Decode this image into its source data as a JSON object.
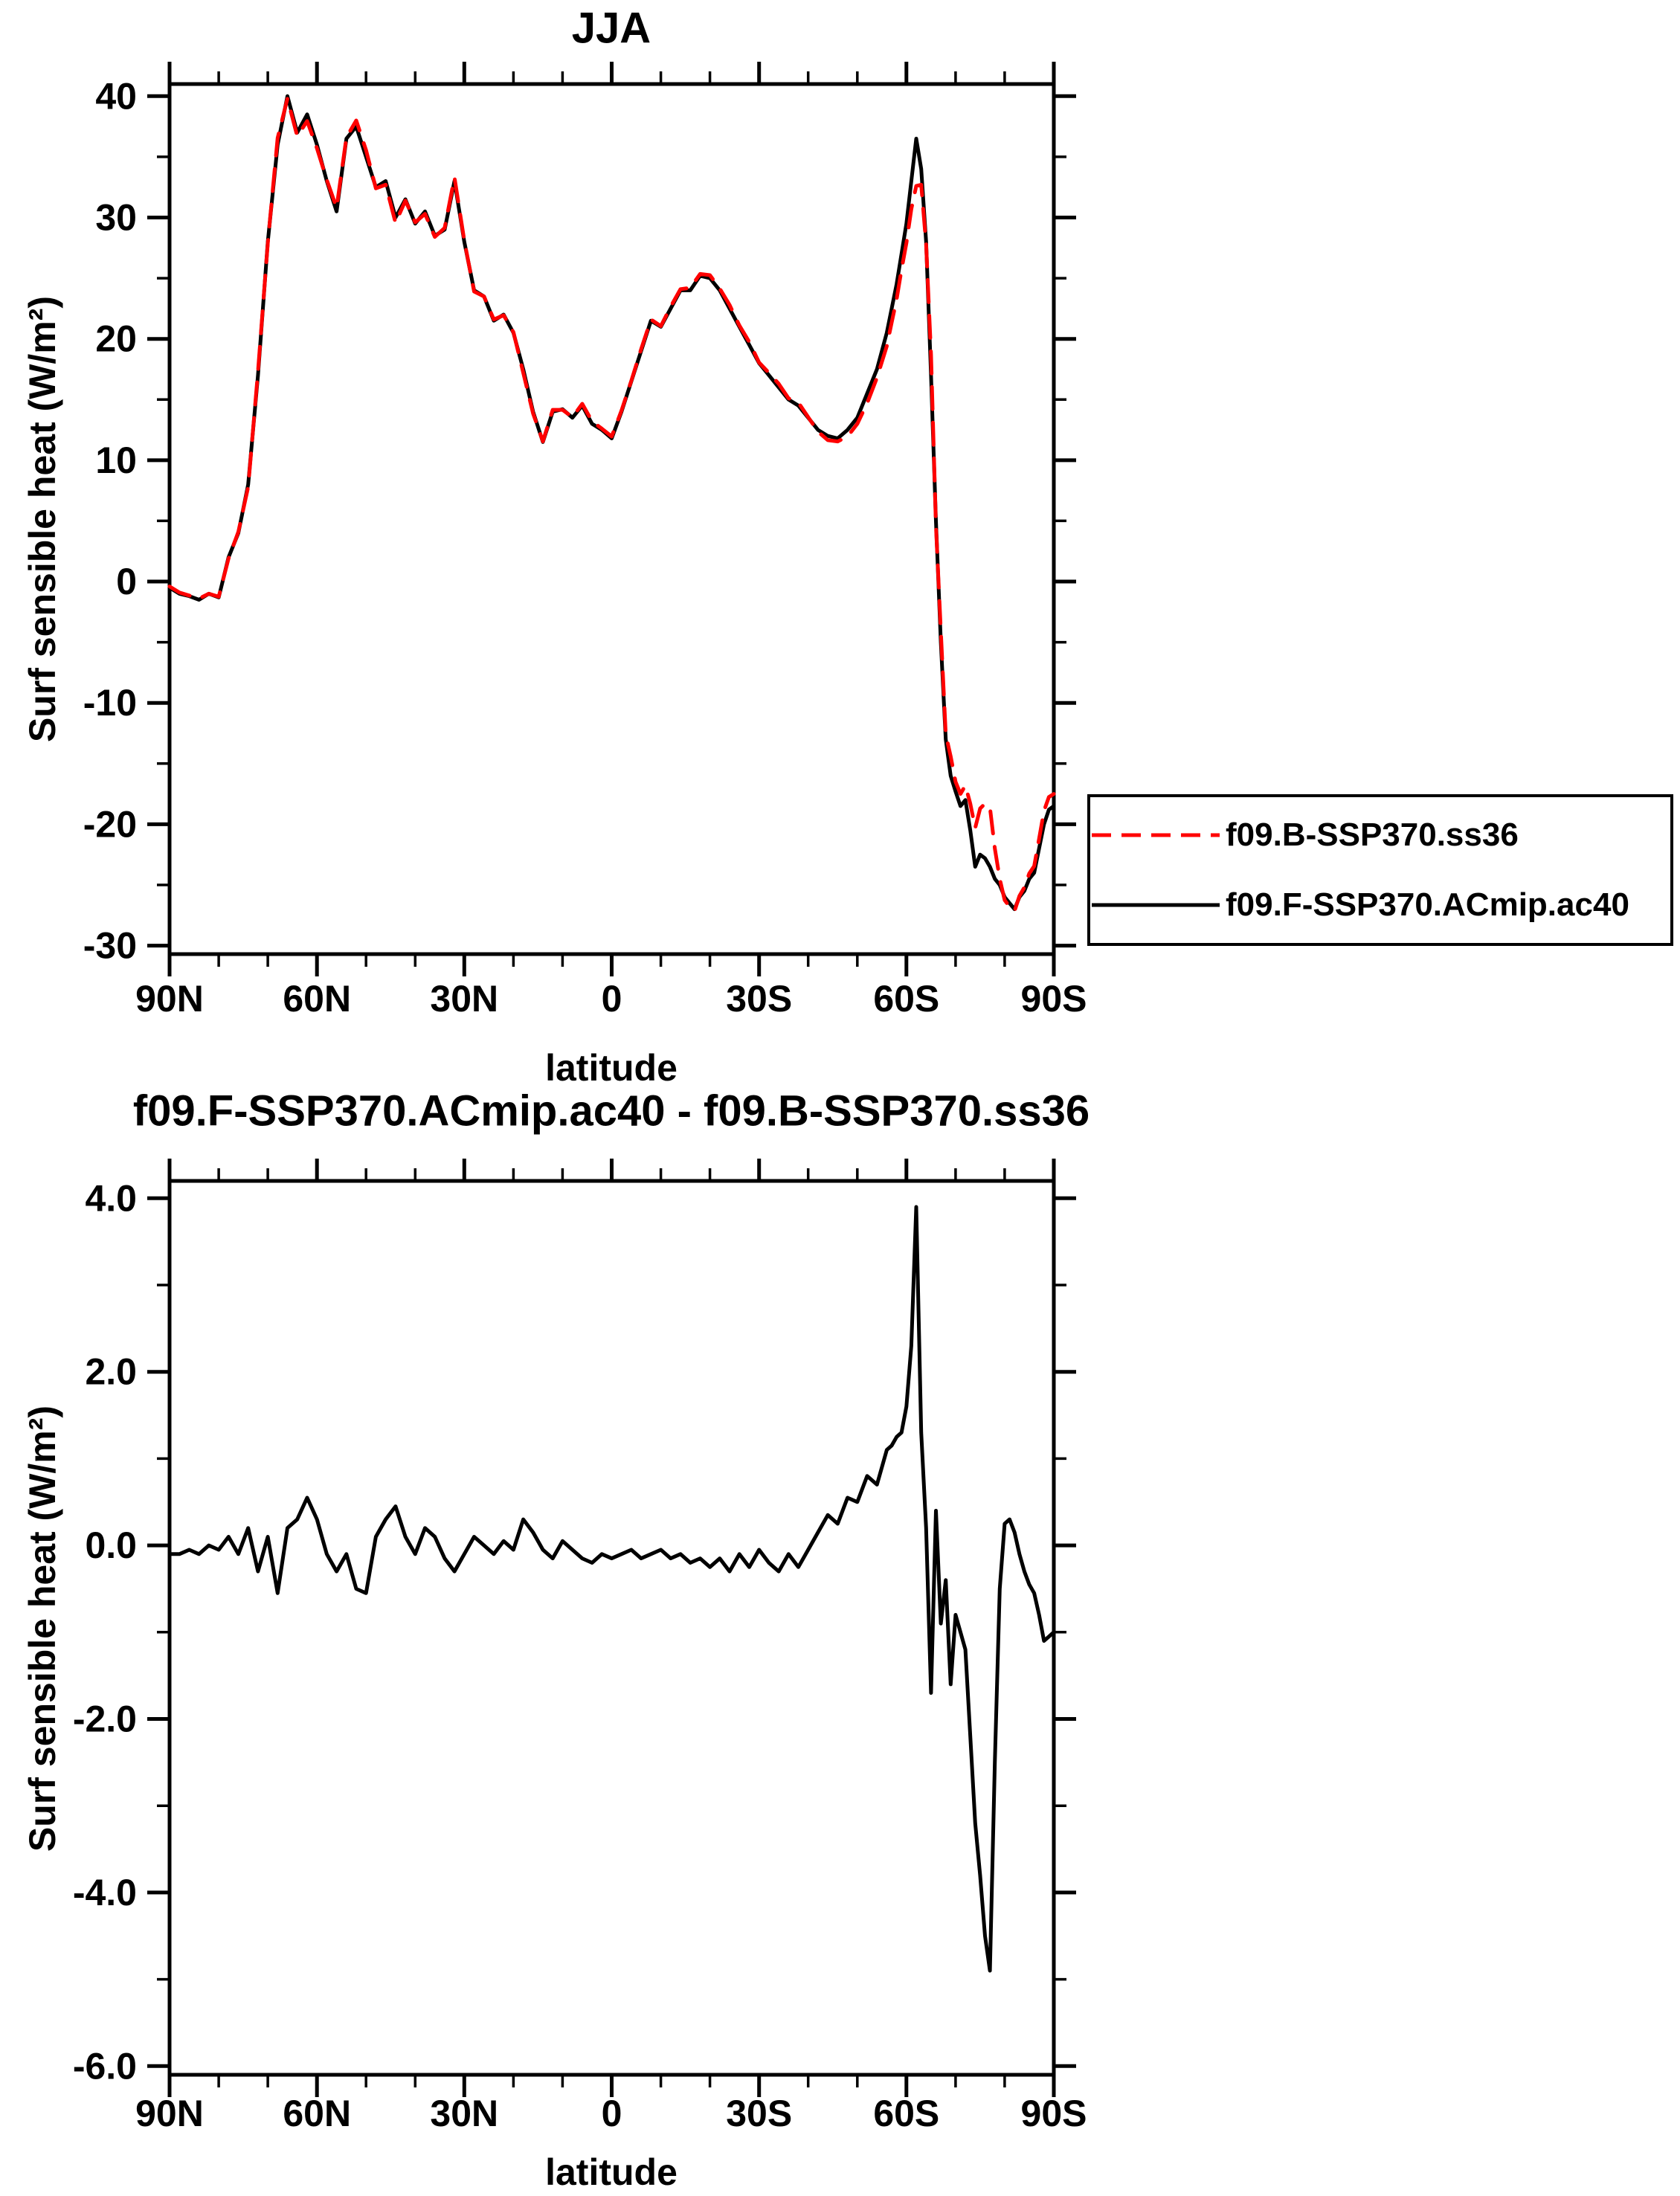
{
  "figure": {
    "background": "#ffffff",
    "axis_color": "#000000"
  },
  "chart_data": [
    {
      "type": "line",
      "title": "JJA",
      "xlabel": "latitude",
      "ylabel": "Surf sensible heat (W/m²)",
      "xlim": [
        90,
        -90
      ],
      "ylim": [
        -30,
        40
      ],
      "grid": false,
      "legend_position": "outside-right-bottom",
      "x_tick_labels": [
        {
          "lat": 90,
          "label": "90N"
        },
        {
          "lat": 60,
          "label": "60N"
        },
        {
          "lat": 30,
          "label": "30N"
        },
        {
          "lat": 0,
          "label": "0"
        },
        {
          "lat": -30,
          "label": "30S"
        },
        {
          "lat": -60,
          "label": "60S"
        },
        {
          "lat": -90,
          "label": "90S"
        }
      ],
      "y_ticks": [
        {
          "v": 40,
          "label": "40"
        },
        {
          "v": 30,
          "label": "30"
        },
        {
          "v": 20,
          "label": "20"
        },
        {
          "v": 10,
          "label": "10"
        },
        {
          "v": 0,
          "label": "0"
        },
        {
          "v": -10,
          "label": "-10"
        },
        {
          "v": -20,
          "label": "-20"
        },
        {
          "v": -30,
          "label": "-30"
        }
      ],
      "x": [
        90,
        88,
        86,
        84,
        82,
        80,
        78,
        76,
        74,
        72,
        70,
        68,
        66,
        64,
        62,
        60,
        58,
        56,
        54,
        52,
        50,
        48,
        46,
        44,
        42,
        40,
        38,
        36,
        34,
        32,
        30,
        28,
        26,
        24,
        22,
        20,
        18,
        16,
        14,
        12,
        10,
        8,
        6,
        4,
        2,
        0,
        -2,
        -4,
        -6,
        -8,
        -10,
        -12,
        -14,
        -16,
        -18,
        -20,
        -22,
        -24,
        -26,
        -28,
        -30,
        -32,
        -34,
        -36,
        -38,
        -40,
        -42,
        -44,
        -46,
        -48,
        -50,
        -52,
        -54,
        -56,
        -57,
        -58,
        -59,
        -60,
        -61,
        -62,
        -63,
        -64,
        -65,
        -66,
        -67,
        -68,
        -69,
        -70,
        -71,
        -72,
        -73,
        -74,
        -75,
        -76,
        -77,
        -78,
        -79,
        -80,
        -81,
        -82,
        -83,
        -84,
        -85,
        -86,
        -87,
        -88,
        -89,
        -90
      ],
      "series": [
        {
          "name": "f09.B-SSP370.ss36",
          "color": "#ff0000",
          "style": "dashed",
          "values": [
            -0.4,
            -0.9,
            -1.15,
            -1.4,
            -1.0,
            -1.25,
            1.9,
            4.1,
            7.8,
            17.3,
            27.9,
            36.55,
            39.8,
            36.7,
            37.95,
            35.7,
            33.1,
            30.8,
            36.6,
            38.0,
            35.55,
            32.4,
            32.7,
            29.55,
            31.4,
            29.6,
            30.3,
            28.4,
            29.15,
            33.3,
            28.1,
            23.9,
            23.5,
            21.6,
            21.95,
            20.55,
            17.2,
            13.85,
            11.55,
            14.15,
            14.15,
            13.55,
            14.65,
            13.2,
            12.6,
            11.95,
            14.1,
            16.55,
            19.15,
            21.6,
            21.05,
            22.65,
            24.1,
            24.2,
            25.35,
            25.25,
            24.15,
            22.8,
            21.1,
            19.75,
            18.05,
            17.2,
            16.3,
            15.1,
            14.75,
            13.55,
            12.35,
            11.65,
            11.55,
            11.95,
            13.0,
            14.7,
            16.8,
            19.4,
            21.35,
            23.25,
            25.7,
            27.9,
            30.7,
            32.6,
            32.7,
            27.8,
            18.7,
            4.6,
            -4.1,
            -12.6,
            -14.4,
            -16.5,
            -17.5,
            -16.8,
            -18.3,
            -20.3,
            -18.7,
            -18.3,
            -18.6,
            -22.0,
            -24.5,
            -26.25,
            -26.8,
            -27.15,
            -25.9,
            -25.2,
            -24.05,
            -23.45,
            -21.2,
            -18.9,
            -17.75,
            -17.5
          ]
        },
        {
          "name": "f09.F-SSP370.ACmip.ac40",
          "color": "#000000",
          "style": "solid",
          "values": [
            -0.5,
            -1.0,
            -1.2,
            -1.5,
            -1.0,
            -1.3,
            2.0,
            4.0,
            8.0,
            17.0,
            28.0,
            36.0,
            40.0,
            37.0,
            38.5,
            36.0,
            33.0,
            30.5,
            36.5,
            37.5,
            35.0,
            32.5,
            33.0,
            30.0,
            31.5,
            29.5,
            30.5,
            28.5,
            29.0,
            33.0,
            28.0,
            24.0,
            23.5,
            21.5,
            22.0,
            20.5,
            17.5,
            14.0,
            11.5,
            14.0,
            14.2,
            13.5,
            14.5,
            13.0,
            12.5,
            11.8,
            14.0,
            16.5,
            19.0,
            21.5,
            21.0,
            22.5,
            24.0,
            24.0,
            25.2,
            25.0,
            24.0,
            22.5,
            21.0,
            19.5,
            18.0,
            17.0,
            16.0,
            15.0,
            14.5,
            13.5,
            12.5,
            12.0,
            11.8,
            12.5,
            13.5,
            15.5,
            17.5,
            20.5,
            22.5,
            24.5,
            27.0,
            29.5,
            33.0,
            36.5,
            34.0,
            28.0,
            17.0,
            5.0,
            -5.0,
            -13.0,
            -16.0,
            -17.3,
            -18.5,
            -18.0,
            -20.5,
            -23.5,
            -22.5,
            -22.8,
            -23.5,
            -24.5,
            -25.0,
            -26.0,
            -26.5,
            -27.0,
            -26.0,
            -25.5,
            -24.5,
            -24.0,
            -22.0,
            -20.0,
            -18.8,
            -18.5
          ]
        }
      ]
    },
    {
      "type": "line",
      "title": "f09.F-SSP370.ACmip.ac40 - f09.B-SSP370.ss36",
      "xlabel": "latitude",
      "ylabel": "Surf sensible heat (W/m²)",
      "xlim": [
        90,
        -90
      ],
      "ylim": [
        -6.0,
        4.0
      ],
      "grid": false,
      "x_tick_labels": [
        {
          "lat": 90,
          "label": "90N"
        },
        {
          "lat": 60,
          "label": "60N"
        },
        {
          "lat": 30,
          "label": "30N"
        },
        {
          "lat": 0,
          "label": "0"
        },
        {
          "lat": -30,
          "label": "30S"
        },
        {
          "lat": -60,
          "label": "60S"
        },
        {
          "lat": -90,
          "label": "90S"
        }
      ],
      "y_ticks": [
        {
          "v": 4,
          "label": "4.0"
        },
        {
          "v": 2,
          "label": "2.0"
        },
        {
          "v": 0,
          "label": "0.0"
        },
        {
          "v": -2,
          "label": "-2.0"
        },
        {
          "v": -4,
          "label": "-4.0"
        },
        {
          "v": -6,
          "label": "-6.0"
        }
      ],
      "x": [
        90,
        88,
        86,
        84,
        82,
        80,
        78,
        76,
        74,
        72,
        70,
        68,
        66,
        64,
        62,
        60,
        58,
        56,
        54,
        52,
        50,
        48,
        46,
        44,
        42,
        40,
        38,
        36,
        34,
        32,
        30,
        28,
        26,
        24,
        22,
        20,
        18,
        16,
        14,
        12,
        10,
        8,
        6,
        4,
        2,
        0,
        -2,
        -4,
        -6,
        -8,
        -10,
        -12,
        -14,
        -16,
        -18,
        -20,
        -22,
        -24,
        -26,
        -28,
        -30,
        -32,
        -34,
        -36,
        -38,
        -40,
        -42,
        -44,
        -46,
        -48,
        -50,
        -52,
        -54,
        -56,
        -57,
        -58,
        -59,
        -60,
        -61,
        -62,
        -63,
        -64,
        -65,
        -66,
        -67,
        -68,
        -69,
        -70,
        -71,
        -72,
        -73,
        -74,
        -75,
        -76,
        -77,
        -78,
        -79,
        -80,
        -81,
        -82,
        -83,
        -84,
        -85,
        -86,
        -87,
        -88,
        -89,
        -90
      ],
      "series": [
        {
          "name": "f09.F-SSP370.ACmip.ac40 minus f09.B-SSP370.ss36",
          "color": "#000000",
          "style": "solid",
          "values": [
            -0.1,
            -0.1,
            -0.05,
            -0.1,
            0.0,
            -0.05,
            0.1,
            -0.1,
            0.2,
            -0.3,
            0.1,
            -0.55,
            0.2,
            0.3,
            0.55,
            0.3,
            -0.1,
            -0.3,
            -0.1,
            -0.5,
            -0.55,
            0.1,
            0.3,
            0.45,
            0.1,
            -0.1,
            0.2,
            0.1,
            -0.15,
            -0.3,
            -0.1,
            0.1,
            0.0,
            -0.1,
            0.05,
            -0.05,
            0.3,
            0.15,
            -0.05,
            -0.15,
            0.05,
            -0.05,
            -0.15,
            -0.2,
            -0.1,
            -0.15,
            -0.1,
            -0.05,
            -0.15,
            -0.1,
            -0.05,
            -0.15,
            -0.1,
            -0.2,
            -0.15,
            -0.25,
            -0.15,
            -0.3,
            -0.1,
            -0.25,
            -0.05,
            -0.2,
            -0.3,
            -0.1,
            -0.25,
            -0.05,
            0.15,
            0.35,
            0.25,
            0.55,
            0.5,
            0.8,
            0.7,
            1.1,
            1.15,
            1.25,
            1.3,
            1.6,
            2.3,
            3.9,
            1.3,
            0.2,
            -1.7,
            0.4,
            -0.9,
            -0.4,
            -1.6,
            -0.8,
            -1.0,
            -1.2,
            -2.2,
            -3.2,
            -3.8,
            -4.5,
            -4.9,
            -2.5,
            -0.5,
            0.25,
            0.3,
            0.15,
            -0.1,
            -0.3,
            -0.45,
            -0.55,
            -0.8,
            -1.1,
            -1.05,
            -1.0
          ]
        }
      ]
    }
  ]
}
